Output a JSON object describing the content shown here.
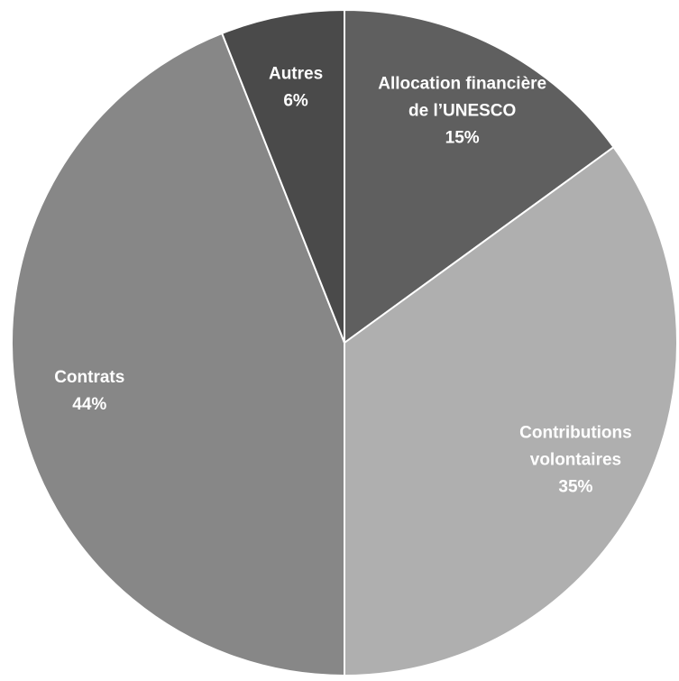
{
  "chart_data": {
    "type": "pie",
    "categories": [
      [
        "Allocation financière",
        "de l’UNESCO"
      ],
      [
        "Contributions",
        "volontaires"
      ],
      [
        "Contrats"
      ],
      [
        "Autres"
      ]
    ],
    "values": [
      15,
      35,
      44,
      6
    ],
    "value_labels": [
      "15%",
      "35%",
      "44%",
      "6%"
    ],
    "colors": [
      "#5f5f5f",
      "#afafaf",
      "#878787",
      "#4a4a4a"
    ]
  }
}
